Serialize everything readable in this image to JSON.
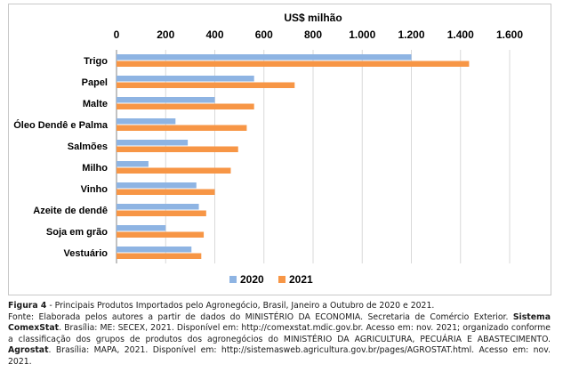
{
  "chart_data": {
    "type": "bar",
    "orientation": "horizontal",
    "axis_title": "US$ milhão",
    "categories": [
      "Trigo",
      "Papel",
      "Malte",
      "Óleo Dendê e Palma",
      "Salmões",
      "Milho",
      "Vinho",
      "Azeite de dendê",
      "Soja em grão",
      "Vestuário"
    ],
    "series": [
      {
        "name": "2020",
        "color": "#8EB4E3",
        "values": [
          1200,
          560,
          400,
          240,
          290,
          130,
          325,
          335,
          200,
          305
        ]
      },
      {
        "name": "2021",
        "color": "#F79646",
        "values": [
          1435,
          725,
          560,
          530,
          495,
          465,
          400,
          365,
          355,
          345
        ]
      }
    ],
    "xlim": [
      0,
      1600
    ],
    "ticks": [
      "0",
      "200",
      "400",
      "600",
      "800",
      "1.000",
      "1.200",
      "1.400",
      "1.600"
    ],
    "grid": true,
    "legend_position": "bottom"
  },
  "caption": {
    "figure_label": "Figura 4",
    "figure_text": " -  Principais Produtos Importados pelo Agronegócio, Brasil, Janeiro a Outubro de 2020 e 2021.",
    "source_1": "Fonte: Elaborada pelos autores a partir de dados do MINISTÉRIO DA ECONOMIA. Secretaria de Comércio Exterior. ",
    "source_bold_1": "Sistema ComexStat",
    "source_2": ". Brasília: ME: SECEX, 2021. Disponível em: http://comexstat.mdic.gov.br. Acesso em: nov. 2021; organizado conforme a classificação dos grupos de produtos dos agronegócios do MINISTÉRIO DA AGRICULTURA, PECUÁRIA E ABASTECIMENTO. ",
    "source_bold_2": "Agrostat",
    "source_3": ". Brasília: MAPA, 2021. Disponível em: http://sistemasweb.agricultura.gov.br/pages/AGROSTAT.html. Acesso em: nov. 2021."
  }
}
